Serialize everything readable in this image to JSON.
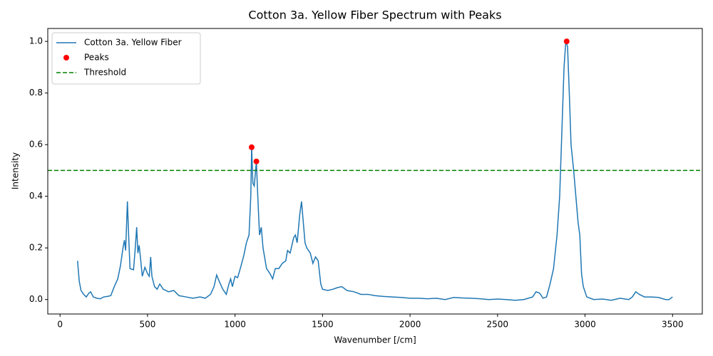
{
  "chart_data": {
    "type": "line",
    "title": "Cotton 3a. Yellow Fiber Spectrum with Peaks",
    "x_label": "Wavenumber [/cm]",
    "y_label": "Intensity",
    "xlim": [
      -70,
      3670
    ],
    "ylim": [
      -0.056,
      1.05
    ],
    "xticks": [
      0,
      500,
      1000,
      1500,
      2000,
      2500,
      3000,
      3500
    ],
    "yticks": [
      {
        "value": 0,
        "label": "0.0"
      },
      0.2,
      0.4,
      0.6,
      0.8,
      {
        "value": 1,
        "label": "1.0"
      }
    ],
    "legend": "upper left",
    "series": [
      {
        "name": "Cotton 3a. Yellow Fiber",
        "type": "line",
        "color": "#1f77b4",
        "x": [
          100,
          110,
          120,
          135,
          150,
          165,
          175,
          190,
          210,
          230,
          250,
          270,
          290,
          310,
          330,
          345,
          360,
          368,
          375,
          385,
          392,
          400,
          420,
          430,
          438,
          445,
          452,
          460,
          470,
          485,
          500,
          510,
          518,
          525,
          540,
          555,
          570,
          590,
          620,
          650,
          680,
          720,
          760,
          800,
          830,
          860,
          880,
          895,
          910,
          930,
          950,
          965,
          975,
          985,
          1000,
          1015,
          1030,
          1050,
          1065,
          1080,
          1090,
          1095,
          1102,
          1110,
          1122,
          1130,
          1140,
          1150,
          1160,
          1180,
          1200,
          1215,
          1230,
          1250,
          1270,
          1290,
          1300,
          1315,
          1335,
          1345,
          1355,
          1370,
          1380,
          1390,
          1400,
          1410,
          1430,
          1445,
          1460,
          1475,
          1490,
          1500,
          1530,
          1560,
          1580,
          1610,
          1640,
          1680,
          1720,
          1760,
          1800,
          1850,
          1900,
          1950,
          2000,
          2050,
          2100,
          2150,
          2200,
          2250,
          2300,
          2350,
          2400,
          2450,
          2500,
          2550,
          2600,
          2650,
          2700,
          2720,
          2740,
          2760,
          2780,
          2800,
          2820,
          2840,
          2855,
          2870,
          2880,
          2890,
          2900,
          2910,
          2920,
          2935,
          2950,
          2960,
          2970,
          2980,
          2990,
          3010,
          3050,
          3100,
          3150,
          3200,
          3250,
          3270,
          3290,
          3310,
          3340,
          3380,
          3420,
          3460,
          3480,
          3500
        ],
        "values": [
          0.15,
          0.07,
          0.035,
          0.02,
          0.01,
          0.025,
          0.03,
          0.01,
          0.005,
          0.003,
          0.01,
          0.012,
          0.015,
          0.05,
          0.08,
          0.13,
          0.2,
          0.23,
          0.19,
          0.38,
          0.25,
          0.12,
          0.115,
          0.2,
          0.28,
          0.18,
          0.21,
          0.16,
          0.09,
          0.125,
          0.1,
          0.09,
          0.165,
          0.09,
          0.05,
          0.04,
          0.06,
          0.04,
          0.03,
          0.035,
          0.015,
          0.01,
          0.005,
          0.01,
          0.005,
          0.02,
          0.05,
          0.095,
          0.07,
          0.04,
          0.02,
          0.06,
          0.08,
          0.05,
          0.09,
          0.085,
          0.12,
          0.17,
          0.22,
          0.25,
          0.4,
          0.59,
          0.45,
          0.44,
          0.535,
          0.4,
          0.25,
          0.28,
          0.2,
          0.12,
          0.1,
          0.08,
          0.12,
          0.12,
          0.14,
          0.15,
          0.19,
          0.18,
          0.24,
          0.25,
          0.22,
          0.33,
          0.38,
          0.3,
          0.22,
          0.2,
          0.18,
          0.14,
          0.165,
          0.15,
          0.06,
          0.04,
          0.035,
          0.04,
          0.045,
          0.05,
          0.035,
          0.03,
          0.02,
          0.02,
          0.015,
          0.012,
          0.01,
          0.008,
          0.005,
          0.005,
          0.003,
          0.005,
          0,
          0.008,
          0.006,
          0.005,
          0.003,
          0,
          0.002,
          0,
          -0.003,
          0,
          0.01,
          0.03,
          0.025,
          0.005,
          0.01,
          0.06,
          0.12,
          0.25,
          0.4,
          0.7,
          0.9,
          1,
          0.98,
          0.8,
          0.6,
          0.5,
          0.38,
          0.3,
          0.25,
          0.1,
          0.05,
          0.01,
          0,
          0.002,
          -0.003,
          0.005,
          0,
          0.01,
          0.03,
          0.02,
          0.01,
          0.01,
          0.008,
          0,
          0,
          0.01
        ]
      },
      {
        "name": "Peaks",
        "type": "scatter",
        "color": "red",
        "x": [
          1095,
          1122,
          2895
        ],
        "values": [
          0.59,
          0.535,
          1
        ]
      }
    ],
    "threshold": {
      "name": "Threshold",
      "value": 0.5,
      "color": "green"
    }
  }
}
